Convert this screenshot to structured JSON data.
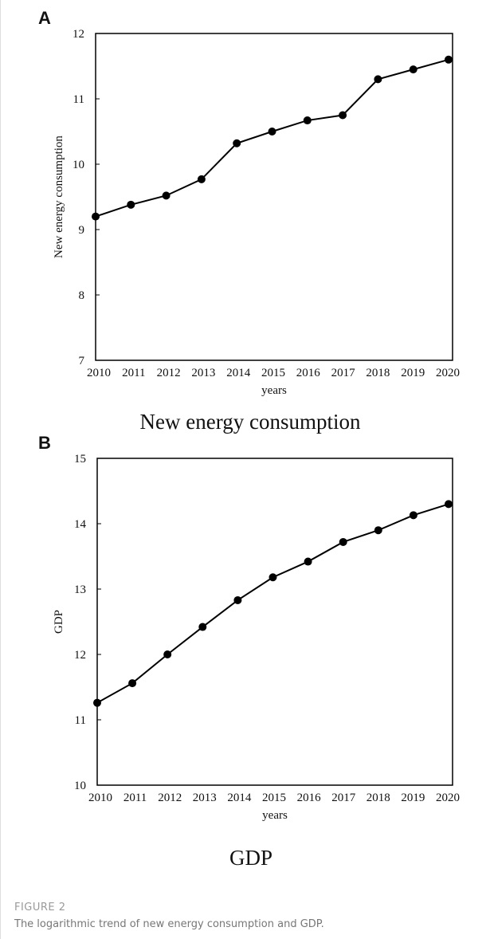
{
  "chart_data": [
    {
      "type": "line",
      "panel": "A",
      "title": "New energy consumption",
      "x_label": "years",
      "y_label": "New energy consumption",
      "categories": [
        "2010",
        "2011",
        "2012",
        "2013",
        "2014",
        "2015",
        "2016",
        "2017",
        "2018",
        "2019",
        "2020"
      ],
      "values": [
        9.2,
        9.38,
        9.52,
        9.77,
        10.32,
        10.5,
        10.67,
        10.75,
        11.3,
        11.45,
        11.6
      ],
      "color": "#000000",
      "ylim": [
        7,
        12
      ],
      "yticks": [
        7,
        8,
        9,
        10,
        11,
        12
      ]
    },
    {
      "type": "line",
      "panel": "B",
      "title": "GDP",
      "x_label": "years",
      "y_label": "GDP",
      "categories": [
        "2010",
        "2011",
        "2012",
        "2013",
        "2014",
        "2015",
        "2016",
        "2017",
        "2018",
        "2019",
        "2020"
      ],
      "values": [
        11.26,
        11.56,
        12.0,
        12.42,
        12.83,
        13.18,
        13.42,
        13.72,
        13.9,
        14.13,
        14.3
      ],
      "color": "#000000",
      "ylim": [
        10,
        15
      ],
      "yticks": [
        10,
        11,
        12,
        13,
        14,
        15
      ]
    }
  ],
  "figure": {
    "label": "FIGURE 2",
    "caption": "The logarithmic trend of new energy consumption and GDP."
  }
}
